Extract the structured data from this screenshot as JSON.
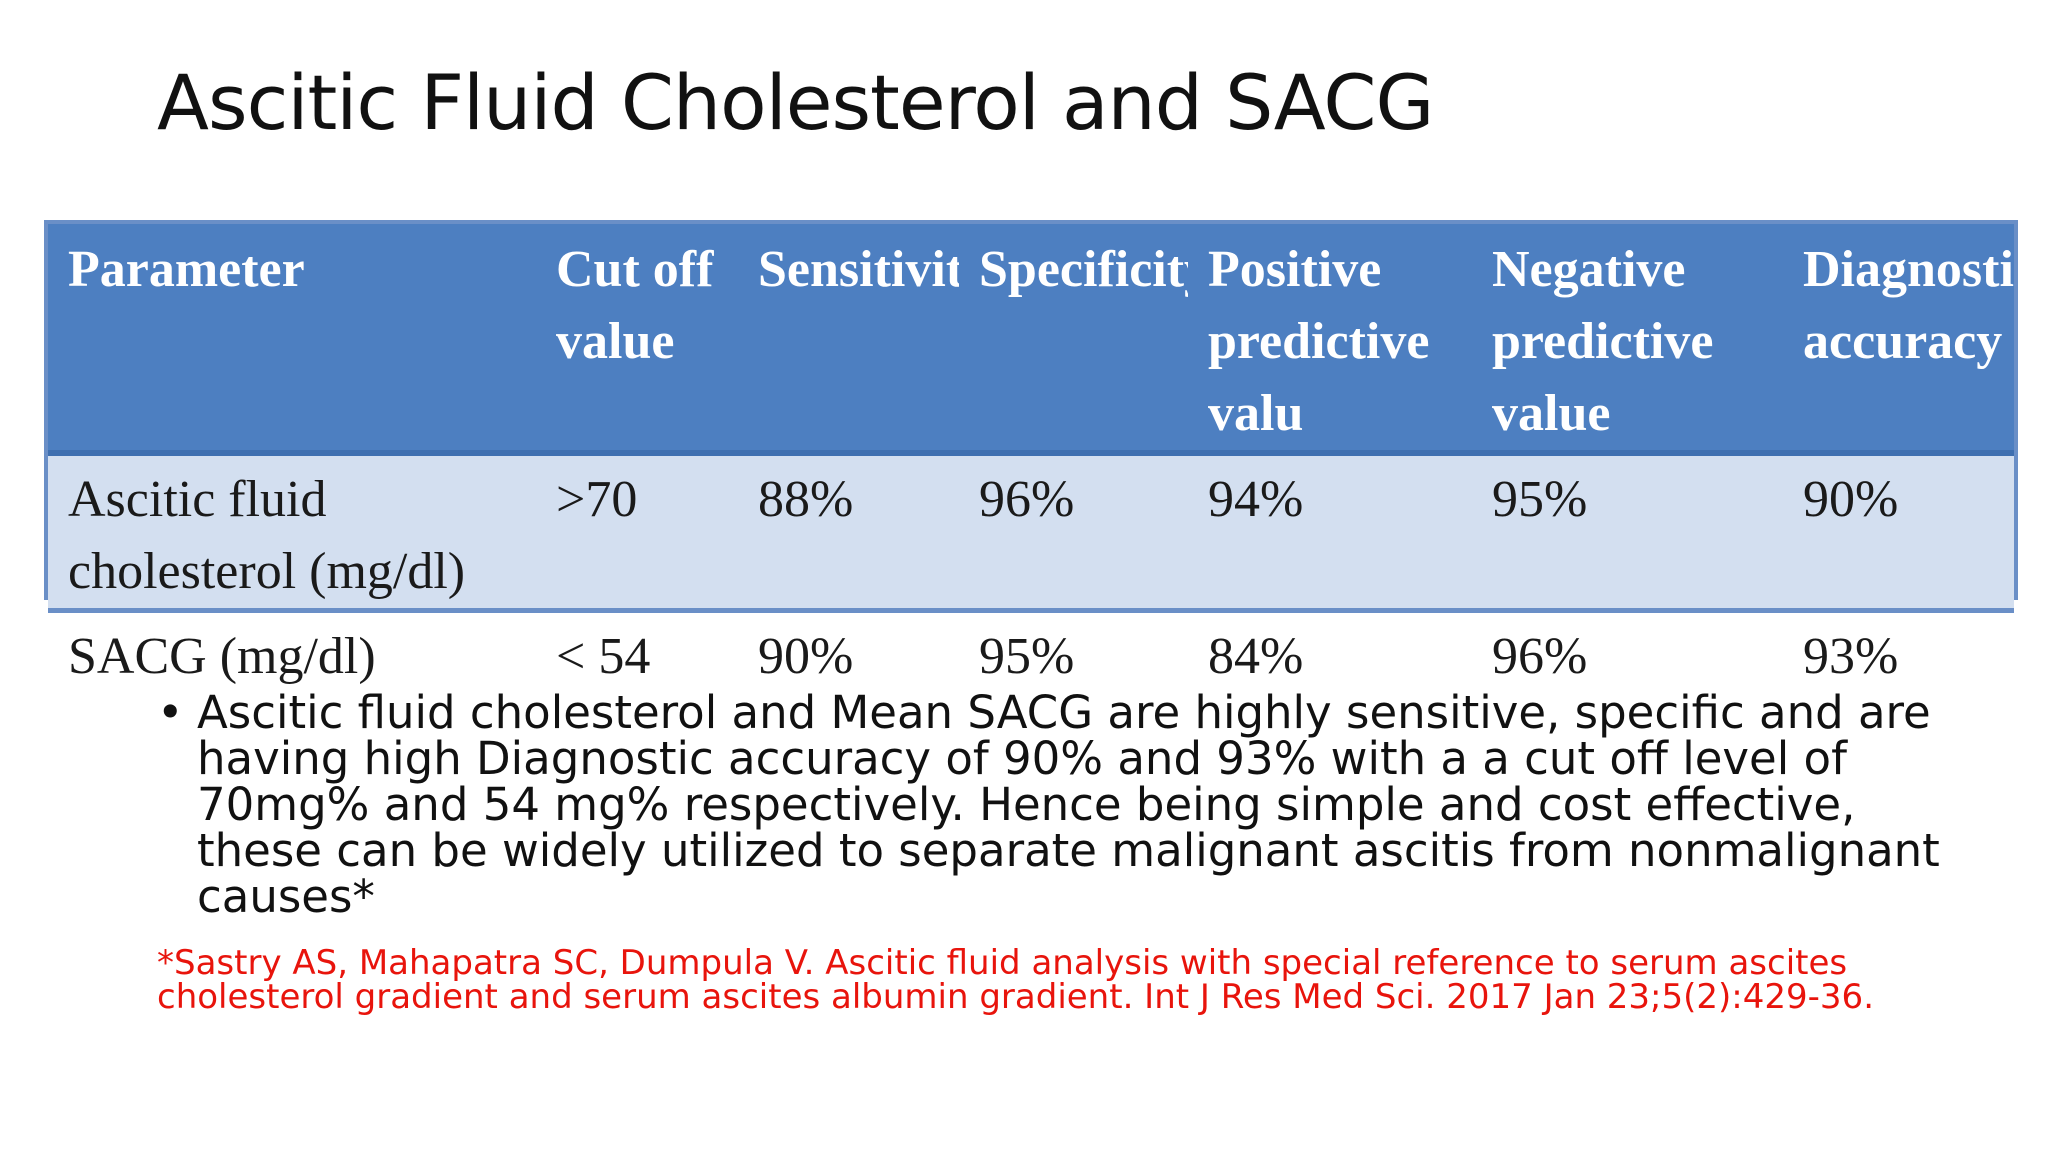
{
  "slide": {
    "title": "Ascitic Fluid Cholesterol and SACG"
  },
  "table": {
    "headers": [
      "Parameter",
      "Cut off value",
      "Sensitivity",
      "Specificity",
      "Positive predictive valu",
      "Negative predictive value",
      "Diagnostic accuracy"
    ],
    "rows": [
      {
        "parameter": "Ascitic fluid cholesterol (mg/dl)",
        "cutoff": ">70",
        "sensitivity": "88%",
        "specificity": "96%",
        "ppv": "94%",
        "npv": "95%",
        "accuracy": "90%"
      },
      {
        "parameter": "SACG (mg/dl)",
        "cutoff": "< 54",
        "sensitivity": "90%",
        "specificity": "95%",
        "ppv": "84%",
        "npv": "96%",
        "accuracy": "93%"
      }
    ]
  },
  "bullets": [
    "Ascitic fluid cholesterol and Mean SACG are highly sensitive, specific and are having high Diagnostic accuracy of 90% and 93% with a a cut off level of 70mg% and 54 mg% respectively. Hence being simple and cost effective, these can be widely utilized to separate malignant ascitis from nonmalignant causes*"
  ],
  "bullet_symbol": "•",
  "reference": "*Sastry AS, Mahapatra SC, Dumpula V. Ascitic fluid analysis with special reference to serum ascites cholesterol gradient and serum ascites albumin gradient. Int J Res Med Sci. 2017 Jan 23;5(2):429-36.",
  "colors": {
    "header_bg": "#4d7fc1",
    "row_alt_bg": "#d3dff0",
    "border": "#6a8fc7",
    "reference_text": "#e8140c"
  }
}
